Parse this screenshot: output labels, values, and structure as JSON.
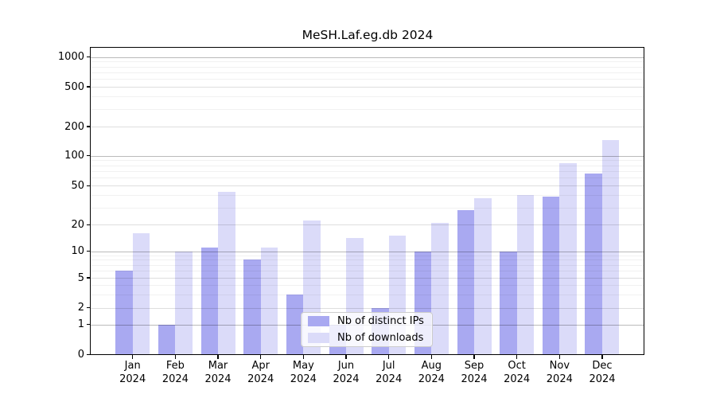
{
  "chart_data": {
    "type": "bar",
    "title": "MeSH.Laf.eg.db 2024",
    "categories": [
      "Jan",
      "Feb",
      "Mar",
      "Apr",
      "May",
      "Jun",
      "Jul",
      "Aug",
      "Sep",
      "Oct",
      "Nov",
      "Dec"
    ],
    "category_year": "2024",
    "series": [
      {
        "name": "Nb of distinct IPs",
        "color": "#a9a9f1",
        "values": [
          6,
          1,
          11,
          8,
          3,
          1,
          2,
          10,
          28,
          10,
          39,
          66
        ]
      },
      {
        "name": "Nb of downloads",
        "color": "#dbdbf9",
        "values": [
          16,
          10,
          43,
          11,
          22,
          14,
          15,
          21,
          37,
          40,
          84,
          145
        ]
      }
    ],
    "xlabel": "",
    "ylabel": "",
    "yscale": "log",
    "yticks": [
      0,
      1,
      2,
      5,
      10,
      20,
      50,
      100,
      200,
      500,
      1000
    ],
    "ylim": [
      0,
      1300
    ],
    "grid": true,
    "legend_position": "inside-bottom-center"
  }
}
